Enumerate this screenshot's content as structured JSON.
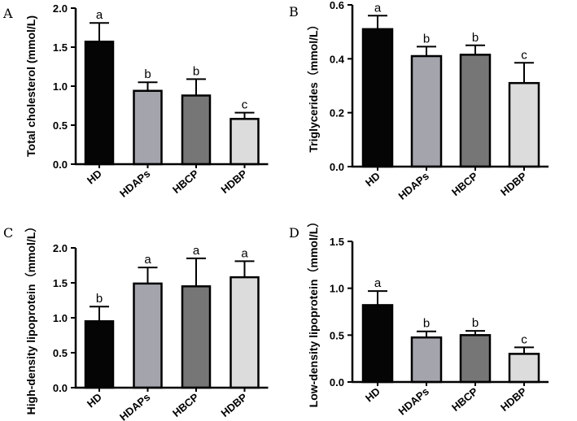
{
  "chart_data": [
    {
      "panel": "A",
      "type": "bar",
      "ylabel": "Total cholesterol (mmol/L)",
      "categories": [
        "HD",
        "HDAPs",
        "HBCP",
        "HDBP"
      ],
      "values": [
        1.57,
        0.94,
        0.88,
        0.58
      ],
      "errors": [
        0.24,
        0.11,
        0.21,
        0.08
      ],
      "letters": [
        "a",
        "b",
        "b",
        "c"
      ],
      "colors": [
        "#050505",
        "#a4a4ad",
        "#767677",
        "#dcdcdc"
      ],
      "ylim": [
        0,
        2.0
      ],
      "yticks": [
        "0.0",
        "0.5",
        "1.0",
        "1.5",
        "2.0"
      ]
    },
    {
      "panel": "B",
      "type": "bar",
      "ylabel": "Triglycerides（mmol/L）",
      "categories": [
        "HD",
        "HDAPs",
        "HBCP",
        "HDBP"
      ],
      "values": [
        0.51,
        0.41,
        0.415,
        0.31
      ],
      "errors": [
        0.05,
        0.035,
        0.035,
        0.075
      ],
      "letters": [
        "a",
        "b",
        "b",
        "c"
      ],
      "colors": [
        "#050505",
        "#a4a4ad",
        "#767677",
        "#dcdcdc"
      ],
      "ylim": [
        0,
        0.6
      ],
      "yticks": [
        "0.0",
        "0.2",
        "0.4",
        "0.6"
      ]
    },
    {
      "panel": "C",
      "type": "bar",
      "ylabel": "High-density lipoprotein（mmol/L）",
      "categories": [
        "HD",
        "HDAPs",
        "HBCP",
        "HDBP"
      ],
      "values": [
        0.95,
        1.49,
        1.45,
        1.58
      ],
      "errors": [
        0.21,
        0.23,
        0.4,
        0.23
      ],
      "letters": [
        "b",
        "a",
        "a",
        "a"
      ],
      "colors": [
        "#050505",
        "#a4a4ad",
        "#767677",
        "#dcdcdc"
      ],
      "ylim": [
        0,
        2.0
      ],
      "yticks": [
        "0.0",
        "0.5",
        "1.0",
        "1.5",
        "2.0"
      ]
    },
    {
      "panel": "D",
      "type": "bar",
      "ylabel": "Low-density lipoprotein（mmol/L）",
      "categories": [
        "HD",
        "HDAPs",
        "HBCP",
        "HDBP"
      ],
      "values": [
        0.82,
        0.475,
        0.5,
        0.3
      ],
      "errors": [
        0.15,
        0.065,
        0.045,
        0.07
      ],
      "letters": [
        "a",
        "b",
        "b",
        "c"
      ],
      "colors": [
        "#050505",
        "#a4a4ad",
        "#767677",
        "#dcdcdc"
      ],
      "ylim": [
        0,
        1.5
      ],
      "yticks": [
        "0.0",
        "0.5",
        "1.0",
        "1.5"
      ]
    }
  ]
}
